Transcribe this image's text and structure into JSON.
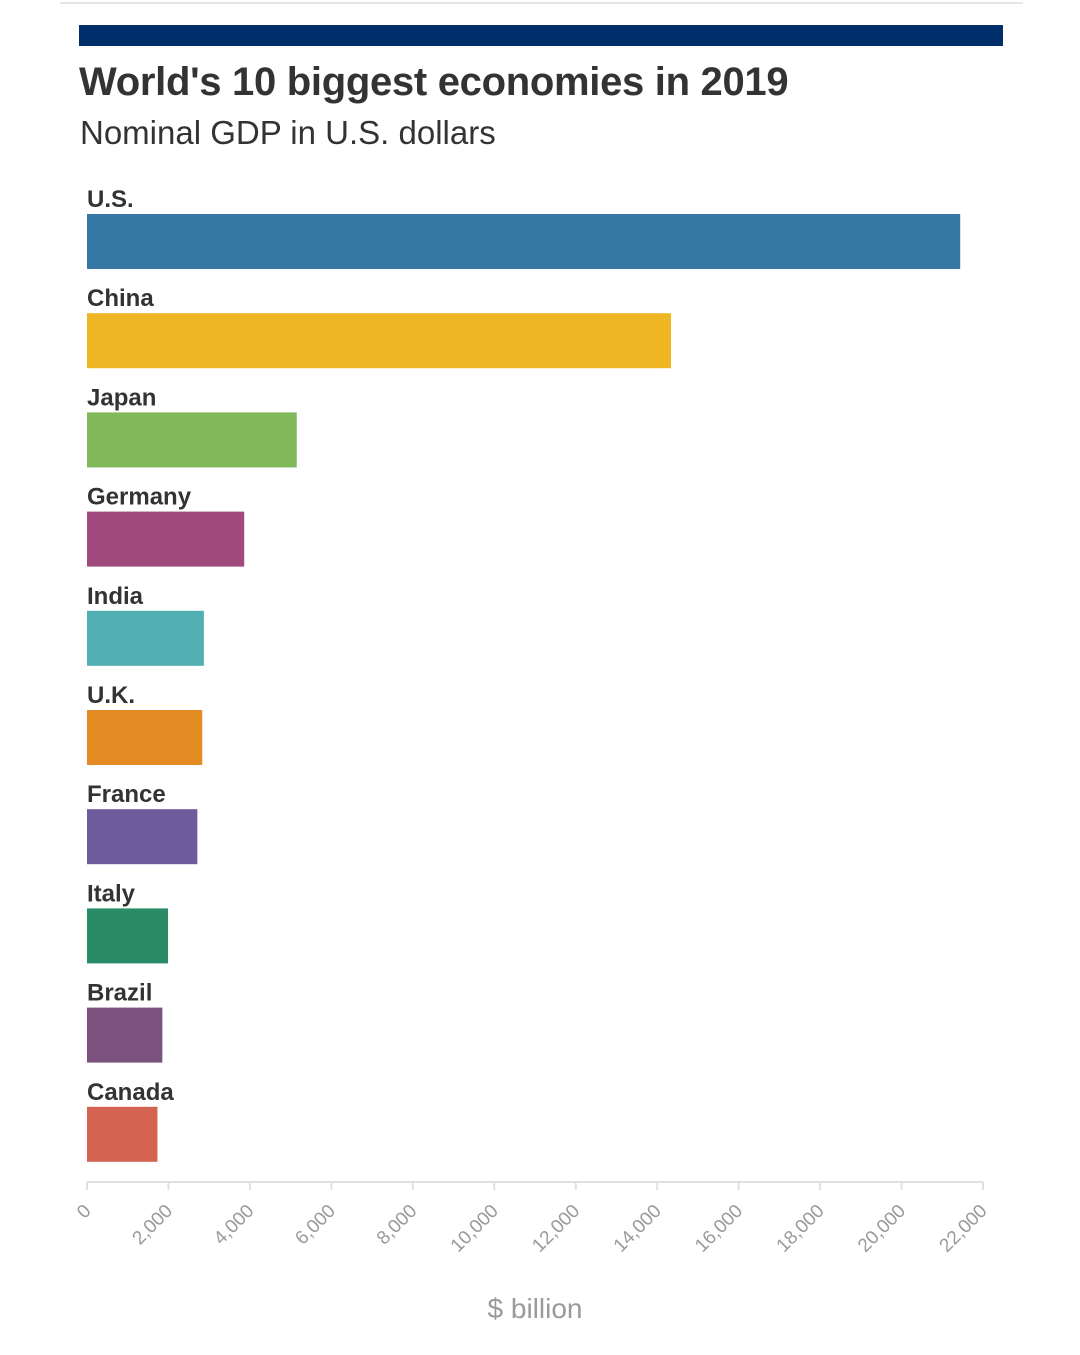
{
  "chart_data": {
    "type": "bar",
    "orientation": "horizontal",
    "title": "World's 10 biggest economies in 2019",
    "subtitle": "Nominal GDP in U.S. dollars",
    "xlabel": "$ billion",
    "ylabel": "",
    "xlim": [
      0,
      22000
    ],
    "ticks": [
      0,
      2000,
      4000,
      6000,
      8000,
      10000,
      12000,
      14000,
      16000,
      18000,
      20000,
      22000
    ],
    "tick_labels": [
      "0",
      "2,000",
      "4,000",
      "6,000",
      "8,000",
      "10,000",
      "12,000",
      "14,000",
      "16,000",
      "18,000",
      "20,000",
      "22,000"
    ],
    "grid": false,
    "categories": [
      "U.S.",
      "China",
      "Japan",
      "Germany",
      "India",
      "U.K.",
      "France",
      "Italy",
      "Brazil",
      "Canada"
    ],
    "values": [
      21440,
      14340,
      5150,
      3860,
      2870,
      2830,
      2710,
      1990,
      1850,
      1730
    ],
    "colors": [
      "#3578a3",
      "#efb623",
      "#81b85a",
      "#a14a7e",
      "#4fafb1",
      "#e58b24",
      "#6e5b9b",
      "#2a8b67",
      "#7c527e",
      "#d46352"
    ]
  },
  "style": {
    "header_band_color": "#002e6b",
    "label_color": "#333333",
    "axis_color": "#e0e0e0",
    "tick_label_color": "#9a9a9a"
  }
}
